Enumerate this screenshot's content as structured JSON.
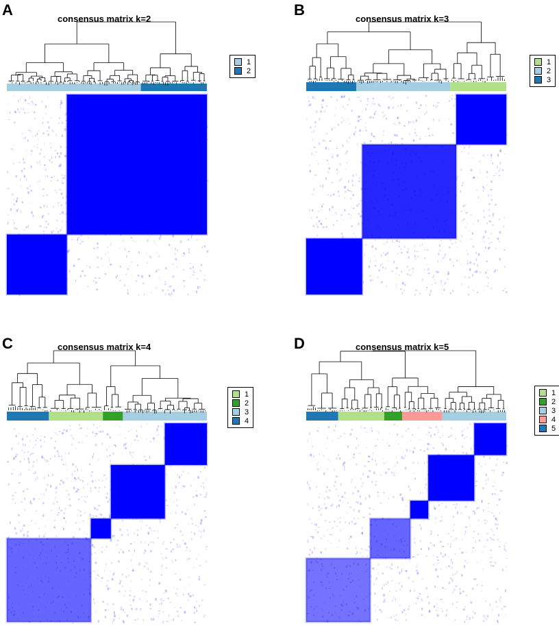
{
  "colors": {
    "consensus_high": "#0000ff",
    "consensus_low": "#ffffff",
    "cluster_palette": [
      "#b2df8a",
      "#33a02c",
      "#a6cee3",
      "#fb9a99",
      "#1f78b4"
    ]
  },
  "chart_data": [
    {
      "panel": "A",
      "type": "heatmap",
      "title": "consensus matrix k=2",
      "k": 2,
      "legend": [
        {
          "label": "1",
          "color": "#a6cee3"
        },
        {
          "label": "2",
          "color": "#1f78b4"
        }
      ],
      "cluster_order": [
        {
          "cluster": "1",
          "color": "#a6cee3",
          "fraction": 0.67
        },
        {
          "cluster": "2",
          "color": "#1f78b4",
          "fraction": 0.33
        }
      ],
      "blocks": [
        {
          "from": 0.0,
          "to": 0.3,
          "consensus": 1.0
        },
        {
          "from": 0.3,
          "to": 1.0,
          "consensus": 1.0
        }
      ]
    },
    {
      "panel": "B",
      "type": "heatmap",
      "title": "consensus matrix k=3",
      "k": 3,
      "legend": [
        {
          "label": "1",
          "color": "#b2df8a"
        },
        {
          "label": "2",
          "color": "#a6cee3"
        },
        {
          "label": "3",
          "color": "#1f78b4"
        }
      ],
      "cluster_order": [
        {
          "cluster": "3",
          "color": "#1f78b4",
          "fraction": 0.25
        },
        {
          "cluster": "2",
          "color": "#a6cee3",
          "fraction": 0.47
        },
        {
          "cluster": "1",
          "color": "#b2df8a",
          "fraction": 0.28
        }
      ],
      "blocks": [
        {
          "from": 0.0,
          "to": 0.28,
          "consensus": 1.0
        },
        {
          "from": 0.28,
          "to": 0.75,
          "consensus": 0.85
        },
        {
          "from": 0.75,
          "to": 1.0,
          "consensus": 1.0
        }
      ]
    },
    {
      "panel": "C",
      "type": "heatmap",
      "title": "consensus matrix k=4",
      "k": 4,
      "legend": [
        {
          "label": "1",
          "color": "#b2df8a"
        },
        {
          "label": "2",
          "color": "#33a02c"
        },
        {
          "label": "3",
          "color": "#a6cee3"
        },
        {
          "label": "4",
          "color": "#1f78b4"
        }
      ],
      "cluster_order": [
        {
          "cluster": "4",
          "color": "#1f78b4",
          "fraction": 0.21
        },
        {
          "cluster": "1",
          "color": "#b2df8a",
          "fraction": 0.27
        },
        {
          "cluster": "2",
          "color": "#33a02c",
          "fraction": 0.1
        },
        {
          "cluster": "3",
          "color": "#a6cee3",
          "fraction": 0.42
        }
      ],
      "blocks": [
        {
          "from": 0.0,
          "to": 0.42,
          "consensus": 0.6
        },
        {
          "from": 0.42,
          "to": 0.52,
          "consensus": 1.0
        },
        {
          "from": 0.52,
          "to": 0.79,
          "consensus": 1.0
        },
        {
          "from": 0.79,
          "to": 1.0,
          "consensus": 1.0
        }
      ]
    },
    {
      "panel": "D",
      "type": "heatmap",
      "title": "consensus matrix k=5",
      "k": 5,
      "legend": [
        {
          "label": "1",
          "color": "#b2df8a"
        },
        {
          "label": "2",
          "color": "#33a02c"
        },
        {
          "label": "3",
          "color": "#a6cee3"
        },
        {
          "label": "4",
          "color": "#fb9a99"
        },
        {
          "label": "5",
          "color": "#1f78b4"
        }
      ],
      "cluster_order": [
        {
          "cluster": "5",
          "color": "#1f78b4",
          "fraction": 0.16
        },
        {
          "cluster": "1",
          "color": "#b2df8a",
          "fraction": 0.23
        },
        {
          "cluster": "2",
          "color": "#33a02c",
          "fraction": 0.09
        },
        {
          "cluster": "4",
          "color": "#fb9a99",
          "fraction": 0.2
        },
        {
          "cluster": "3",
          "color": "#a6cee3",
          "fraction": 0.32
        }
      ],
      "blocks": [
        {
          "from": 0.0,
          "to": 0.32,
          "consensus": 0.55
        },
        {
          "from": 0.32,
          "to": 0.52,
          "consensus": 0.6
        },
        {
          "from": 0.52,
          "to": 0.61,
          "consensus": 1.0
        },
        {
          "from": 0.61,
          "to": 0.84,
          "consensus": 1.0
        },
        {
          "from": 0.84,
          "to": 1.0,
          "consensus": 1.0
        }
      ]
    }
  ]
}
